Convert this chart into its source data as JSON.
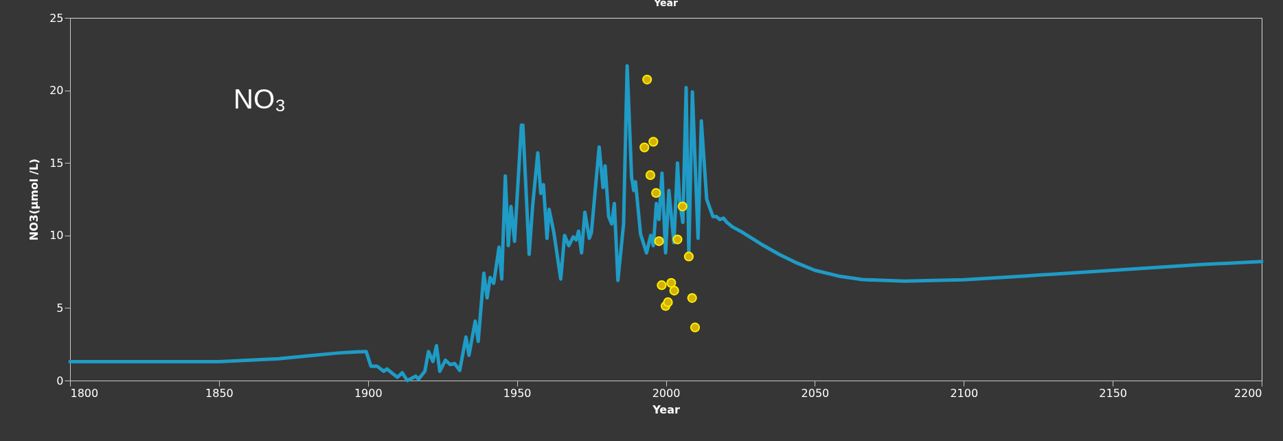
{
  "chart_data": {
    "type": "line",
    "title": "Year",
    "xlabel": "Year",
    "ylabel": "NO3(μmol /L)",
    "annotations": [
      "NO₃"
    ],
    "xlim": [
      1800,
      2200
    ],
    "xticks": [
      1800,
      1850,
      1900,
      1950,
      2000,
      2050,
      2100,
      2150,
      2200
    ],
    "ylim": [
      0,
      25
    ],
    "yticks": [
      0,
      5,
      10,
      15,
      20,
      25
    ],
    "grid": false,
    "series": [
      {
        "color": "#1f9bc6",
        "line_style": "solid",
        "x": [
          1800,
          1850,
          1870,
          1880,
          1890,
          1896.3,
          1899.4,
          1901,
          1903,
          1905.3,
          1906.4,
          1908.4,
          1909.9,
          1911.5,
          1913.2,
          1916,
          1917,
          1919.1,
          1920.3,
          1921.8,
          1923,
          1924.1,
          1926,
          1927.6,
          1929.1,
          1930.8,
          1932.9,
          1933.9,
          1936,
          1937,
          1938.9,
          1940,
          1941,
          1942.2,
          1944,
          1944.9,
          1946.1,
          1947.1,
          1948,
          1949.2,
          1951.5,
          1952,
          1954.1,
          1955.3,
          1957,
          1958,
          1958.9,
          1960.1,
          1960.8,
          1962.4,
          1964.7,
          1966,
          1967.4,
          1968.9,
          1969.9,
          1970.7,
          1971.7,
          1972.8,
          1974.3,
          1975,
          1977.6,
          1978.9,
          1979.6,
          1980.8,
          1981.8,
          1982.7,
          1983.9,
          1985.8,
          1987,
          1988.5,
          1989.2,
          1989.8,
          1991.5,
          1993.5,
          1994.9,
          1995.8,
          1996.8,
          1997.7,
          1998.7,
          1999.9,
          2001,
          2002.7,
          2003.9,
          2004.6,
          2005.7,
          2006.8,
          2007.7,
          2008.9,
          2010.8,
          2011.9,
          2013.7,
          2015.8,
          2017,
          2018.1,
          2019.3,
          2020.5,
          2022.3,
          2025,
          2032,
          2038,
          2044,
          2050,
          2058,
          2066,
          2080,
          2100,
          2120,
          2150,
          2180,
          2200
        ],
        "values": [
          1.3,
          1.3,
          1.5,
          1.7,
          1.9,
          1.98,
          2.0,
          0.98,
          1.0,
          0.64,
          0.8,
          0.46,
          0.23,
          0.54,
          0.0,
          0.3,
          0.1,
          0.64,
          2.0,
          1.32,
          2.4,
          0.64,
          1.4,
          1.1,
          1.17,
          0.7,
          3.0,
          1.74,
          4.1,
          2.7,
          7.4,
          5.7,
          7.1,
          6.7,
          9.2,
          7.0,
          14.1,
          9.3,
          12.0,
          9.6,
          17.6,
          17.6,
          8.7,
          12.1,
          15.7,
          12.9,
          13.5,
          9.8,
          11.8,
          10.2,
          7.0,
          10.0,
          9.3,
          9.9,
          9.7,
          10.3,
          8.8,
          11.6,
          9.8,
          10.2,
          16.1,
          13.3,
          14.8,
          11.3,
          10.8,
          12.2,
          6.9,
          10.8,
          21.7,
          14.0,
          13.1,
          13.7,
          10.1,
          8.8,
          10.0,
          9.3,
          12.2,
          11.1,
          14.3,
          8.8,
          13.1,
          9.5,
          15.0,
          12.4,
          10.9,
          20.2,
          8.8,
          19.9,
          9.8,
          17.9,
          12.5,
          11.3,
          11.3,
          11.1,
          11.2,
          10.9,
          10.6,
          10.3,
          9.4,
          8.7,
          8.1,
          7.6,
          7.2,
          6.96,
          6.85,
          6.95,
          7.2,
          7.6,
          8.0,
          8.2
        ]
      },
      {
        "type": "scatter",
        "color": "#d4b106",
        "marker": "circle",
        "x": [
          1993.7,
          1992.8,
          1995.8,
          1994.8,
          1996.7,
          1997.7,
          2003.9,
          2005.6,
          2007.7,
          1998.6,
          2001.8,
          2002.8,
          1999.9,
          2000.7,
          2008.8,
          2009.8
        ],
        "values": [
          20.75,
          16.07,
          16.46,
          14.16,
          12.93,
          9.61,
          9.73,
          12.0,
          8.55,
          6.57,
          6.73,
          6.2,
          5.14,
          5.4,
          5.69,
          3.66
        ]
      }
    ]
  }
}
